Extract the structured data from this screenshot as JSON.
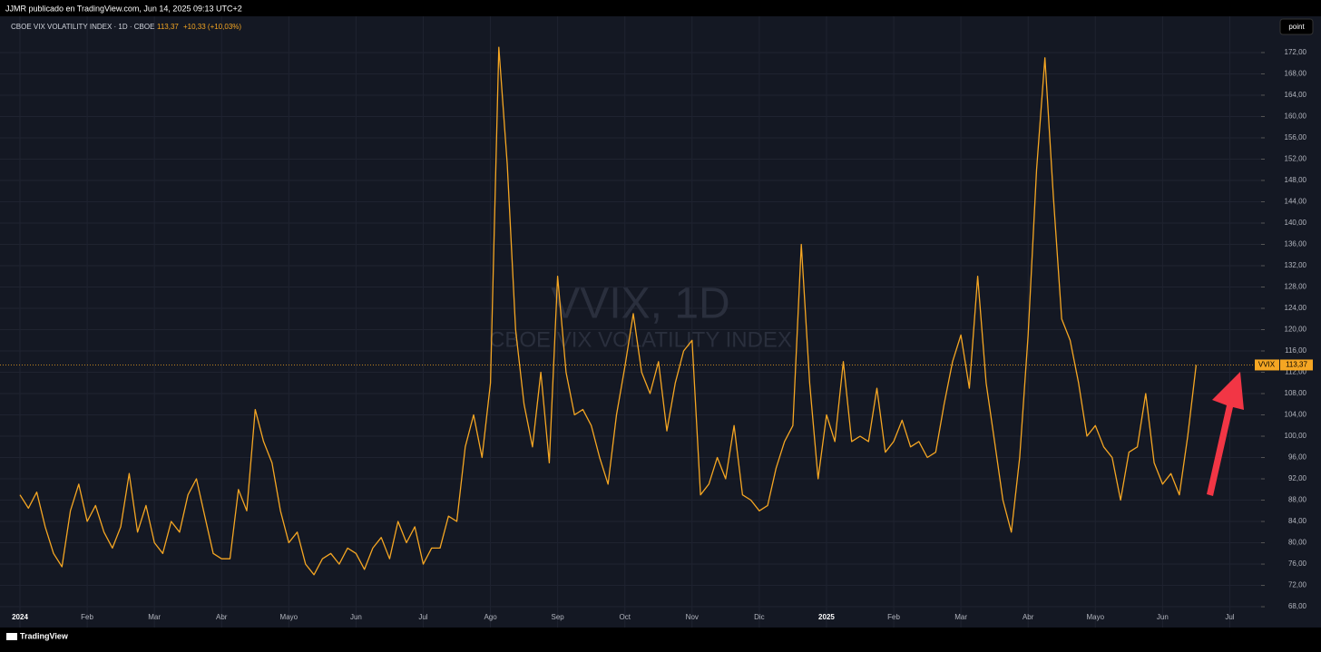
{
  "header": {
    "publisher": "JJMR publicado en TradingView.com, Jun 14, 2025 09:13 UTC+2",
    "symbol": "CBOE VIX VOLATILITY INDEX · 1D · CBOE",
    "price": "113,37",
    "change": "+10,33 (+10,03%)",
    "button": "point"
  },
  "watermark": {
    "title": "VVIX, 1D",
    "subtitle": "CBOE VIX VOLATILITY INDEX"
  },
  "footer": {
    "brand": "TradingView"
  },
  "chart_data": {
    "type": "line",
    "grid": true,
    "ylim": [
      67.5,
      178.8
    ],
    "yticks": [
      {
        "value": 68,
        "label": "68,00"
      },
      {
        "value": 72,
        "label": "72,00"
      },
      {
        "value": 76,
        "label": "76,00"
      },
      {
        "value": 80,
        "label": "80,00"
      },
      {
        "value": 84,
        "label": "84,00"
      },
      {
        "value": 88,
        "label": "88,00"
      },
      {
        "value": 92,
        "label": "92,00"
      },
      {
        "value": 96,
        "label": "96,00"
      },
      {
        "value": 100,
        "label": "100,00"
      },
      {
        "value": 104,
        "label": "104,00"
      },
      {
        "value": 108,
        "label": "108,00"
      },
      {
        "value": 112,
        "label": "112,00"
      },
      {
        "value": 116,
        "label": "116,00"
      },
      {
        "value": 120,
        "label": "120,00"
      },
      {
        "value": 124,
        "label": "124,00"
      },
      {
        "value": 128,
        "label": "128,00"
      },
      {
        "value": 132,
        "label": "132,00"
      },
      {
        "value": 136,
        "label": "136,00"
      },
      {
        "value": 140,
        "label": "140,00"
      },
      {
        "value": 144,
        "label": "144,00"
      },
      {
        "value": 148,
        "label": "148,00"
      },
      {
        "value": 152,
        "label": "152,00"
      },
      {
        "value": 156,
        "label": "156,00"
      },
      {
        "value": 160,
        "label": "160,00"
      },
      {
        "value": 164,
        "label": "164,00"
      },
      {
        "value": 168,
        "label": "168,00"
      },
      {
        "value": 172,
        "label": "172,00"
      }
    ],
    "last_price": {
      "value": 113.37,
      "label": "113,37"
    },
    "categories": [
      "2024",
      null,
      null,
      null,
      null,
      null,
      null,
      null,
      "Feb",
      null,
      null,
      null,
      null,
      null,
      null,
      null,
      "Mar",
      null,
      null,
      null,
      null,
      null,
      null,
      null,
      "Abr",
      null,
      null,
      null,
      null,
      null,
      null,
      null,
      "Mayo",
      null,
      null,
      null,
      null,
      null,
      null,
      null,
      "Jun",
      null,
      null,
      null,
      null,
      null,
      null,
      null,
      "Jul",
      null,
      null,
      null,
      null,
      null,
      null,
      null,
      "Ago",
      null,
      null,
      null,
      null,
      null,
      null,
      null,
      "Sep",
      null,
      null,
      null,
      null,
      null,
      null,
      null,
      "Oct",
      null,
      null,
      null,
      null,
      null,
      null,
      null,
      "Nov",
      null,
      null,
      null,
      null,
      null,
      null,
      null,
      "Dic",
      null,
      null,
      null,
      null,
      null,
      null,
      null,
      "2025",
      null,
      null,
      null,
      null,
      null,
      null,
      null,
      "Feb",
      null,
      null,
      null,
      null,
      null,
      null,
      null,
      "Mar",
      null,
      null,
      null,
      null,
      null,
      null,
      null,
      "Abr",
      null,
      null,
      null,
      null,
      null,
      null,
      null,
      "Mayo",
      null,
      null,
      null,
      null,
      null,
      null,
      null,
      "Jun",
      null,
      null,
      null,
      null,
      null,
      null,
      null,
      "Jul",
      null,
      null,
      null,
      null
    ],
    "series": [
      {
        "name": "VVIX",
        "color": "#f5a623",
        "values": [
          89,
          86.5,
          89.5,
          83,
          78,
          75.5,
          86,
          91,
          84,
          87,
          82,
          79,
          83,
          93,
          82,
          87,
          80,
          78,
          84,
          82,
          89,
          92,
          85,
          78,
          77,
          77,
          90,
          86,
          105,
          99,
          95,
          86,
          80,
          82,
          76,
          74,
          77,
          78,
          76,
          79,
          78,
          75,
          79,
          81,
          77,
          84,
          80,
          83,
          76,
          79,
          79,
          85,
          84,
          98,
          104,
          96,
          110,
          173,
          151,
          120,
          106,
          98,
          112,
          95,
          130,
          112,
          104,
          105,
          102,
          96,
          91,
          104,
          113,
          123,
          112,
          108,
          114,
          101,
          110,
          116,
          118,
          89,
          91,
          96,
          92,
          102,
          89,
          88,
          86,
          87,
          94,
          99,
          102,
          136,
          110,
          92,
          104,
          99,
          114,
          99,
          100,
          99,
          109,
          97,
          99,
          103,
          98,
          99,
          96,
          97,
          106,
          114,
          119,
          109,
          130,
          110,
          99,
          88,
          82,
          96,
          119,
          150,
          171,
          145,
          122,
          118,
          110,
          100,
          102,
          98,
          96,
          88,
          97,
          98,
          108,
          95,
          91,
          93,
          89,
          100,
          113.37,
          null,
          null,
          null,
          null,
          null,
          null,
          null,
          null
        ]
      }
    ]
  }
}
